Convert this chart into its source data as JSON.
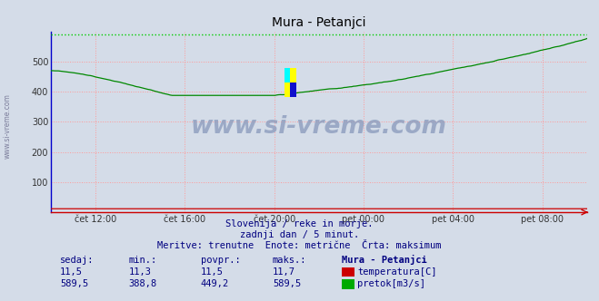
{
  "title": "Mura - Petanjci",
  "bg_color": "#d4dce8",
  "plot_bg_color": "#d4dce8",
  "grid_color": "#ff9999",
  "grid_style": ":",
  "ylim": [
    0,
    600
  ],
  "yticks": [
    100,
    200,
    300,
    400,
    500
  ],
  "x_tick_labels": [
    "čet 12:00",
    "čet 16:00",
    "čet 20:00",
    "pet 00:00",
    "pet 04:00",
    "pet 08:00"
  ],
  "x_tick_positions": [
    0.083,
    0.25,
    0.417,
    0.583,
    0.75,
    0.917
  ],
  "max_line_value": 589.5,
  "max_line_color": "#00cc00",
  "flow_line_color": "#008800",
  "temp_line_color": "#cc0000",
  "left_spine_color": "#0000cc",
  "bottom_spine_color": "#cc0000",
  "watermark_text": "www.si-vreme.com",
  "watermark_color": "#8899bb",
  "subtitle1": "Slovenija / reke in morje.",
  "subtitle2": "zadnji dan / 5 minut.",
  "subtitle3": "Meritve: trenutne  Enote: metrične  Črta: maksimum",
  "table_headers": [
    "sedaj:",
    "min.:",
    "povpr.:",
    "maks.:",
    "Mura - Petanjci"
  ],
  "table_row1": [
    "11,5",
    "11,3",
    "11,5",
    "11,7"
  ],
  "table_row2": [
    "589,5",
    "388,8",
    "449,2",
    "589,5"
  ],
  "label_temp": "temperatura[C]",
  "label_pretok": "pretok[m3/s]",
  "text_color": "#000080",
  "n_points": 288,
  "left_watermark": "www.si-vreme.com"
}
